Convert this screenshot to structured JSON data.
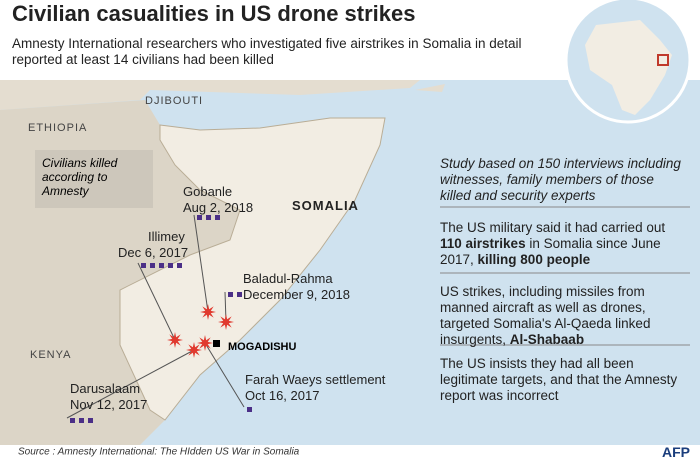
{
  "header": {
    "title": "Civilian casualities in US drone strikes",
    "subtitle": "Amnesty International researchers who investigated five airstrikes in Somalia in detail reported at least 14 civilians had been killed"
  },
  "map": {
    "countries": [
      "DJIBOUTI",
      "ETHIOPIA",
      "SOMALIA",
      "KENYA"
    ],
    "capital": "MOGADISHU",
    "legend": "Civilians killed according to Amnesty",
    "marker_color": "#4b2f87",
    "sites": [
      {
        "name": "Gobanle",
        "date": "Aug 2, 2018",
        "civilians": 3
      },
      {
        "name": "Illimey",
        "date": "Dec 6, 2017",
        "civilians": 5
      },
      {
        "name": "Baladul-Rahma",
        "date": "December 9, 2018",
        "civilians": 2
      },
      {
        "name": "Darusalaam",
        "date": "Nov 12, 2017",
        "civilians": 3
      },
      {
        "name": "Farah Waeys settlement",
        "date": "Oct 16, 2017",
        "civilians": 1
      }
    ]
  },
  "panel": [
    [
      {
        "text": "Study based on 150 interviews including witnesses, family members of those killed and security experts",
        "bold": false
      }
    ],
    [
      {
        "text": "The US military said it had carried out ",
        "bold": false
      },
      {
        "text": "110 airstrikes",
        "bold": true
      },
      {
        "text": " in Somalia since June 2017, ",
        "bold": false
      },
      {
        "text": "killing 800 people",
        "bold": true
      }
    ],
    [
      {
        "text": "US strikes, including missiles from manned aircraft as well as drones, targeted Somalia's Al-Qaeda linked insurgents, ",
        "bold": false
      },
      {
        "text": "Al-Shabaab",
        "bold": true
      }
    ],
    [
      {
        "text": "The US insists they had all been legitimate targets, and that the Amnesty report was incorrect",
        "bold": false
      }
    ]
  ],
  "footer": {
    "source": "Source : Amnesty International: The HIdden US War in Somalia",
    "credit": "AFP"
  }
}
